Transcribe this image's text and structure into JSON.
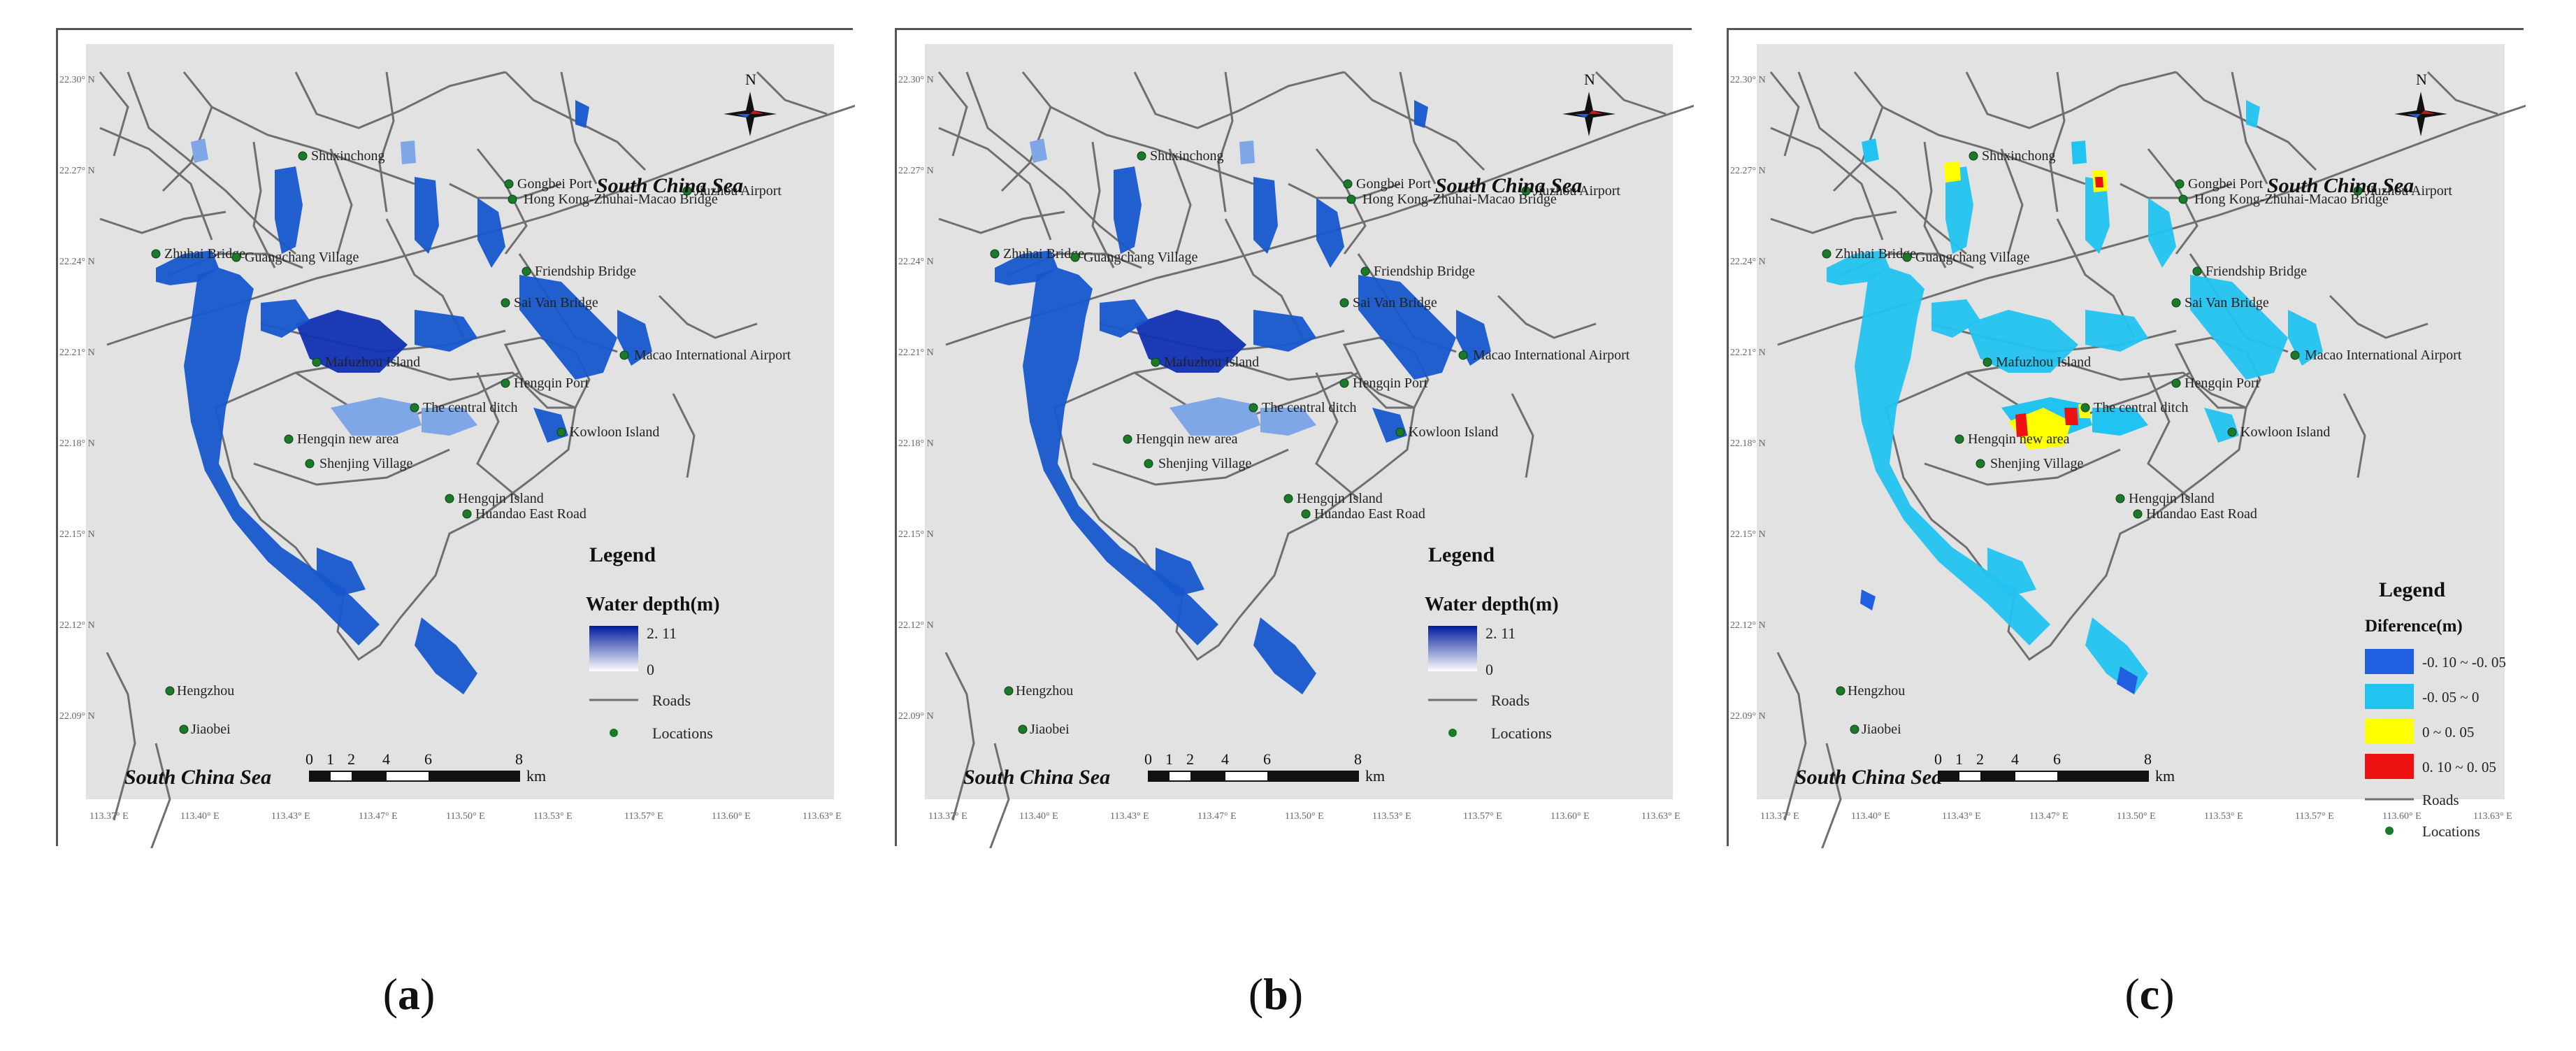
{
  "figure": {
    "compass_letter": "N",
    "legend_title": "Legend",
    "roads_label": "Roads",
    "locations_label": "Locations",
    "scale_numbers": [
      "0",
      "1",
      "2",
      "4",
      "6",
      "8"
    ],
    "scale_unit": "km",
    "panels": [
      {
        "caption_open": "(",
        "caption_letter": "a",
        "caption_close": ")",
        "legend_heading": "Water depth(m)",
        "legend_max": "2. 11",
        "legend_min": "0",
        "sea_top": "South China Sea",
        "sea_bottom": "South China Sea",
        "locations": [
          {
            "name": "Jiuzhou Airport"
          },
          {
            "name": "Shuxinchong"
          },
          {
            "name": "Gongbei Port"
          },
          {
            "name": "Hong Kong-Zhuhai-Macao Bridge"
          },
          {
            "name": "Zhuhai Bridge"
          },
          {
            "name": "Guangchang Village"
          },
          {
            "name": "Friendship Bridge"
          },
          {
            "name": "Sai Van Bridge"
          },
          {
            "name": "Macao International Airport"
          },
          {
            "name": "Mafuzhou Island"
          },
          {
            "name": "Hengqin Port"
          },
          {
            "name": "The central ditch"
          },
          {
            "name": "Kowloon Island"
          },
          {
            "name": "Hengqin new area"
          },
          {
            "name": "Shenjing Village"
          },
          {
            "name": "Hengqin Island"
          },
          {
            "name": "Huandao East Road"
          },
          {
            "name": "Hengzhou"
          },
          {
            "name": "Jiaobei"
          }
        ],
        "lat_ticks": [
          "22.30° N",
          "22.27° N",
          "22.24° N",
          "22.21° N",
          "22.18° N",
          "22.15° N",
          "22.12° N",
          "22.09° N"
        ],
        "lon_ticks": [
          "113.37° E",
          "113.40° E",
          "113.43° E",
          "113.47° E",
          "113.50° E",
          "113.53° E",
          "113.57° E",
          "113.60° E",
          "113.63° E"
        ]
      },
      {
        "caption_open": "(",
        "caption_letter": "b",
        "caption_close": ")",
        "legend_heading": "Water depth(m)",
        "legend_max": "2. 11",
        "legend_min": "0",
        "sea_top": "South China Sea",
        "sea_bottom": "South China Sea",
        "locations": [
          {
            "name": "Jiuzhou Airport"
          },
          {
            "name": "Shuxinchong"
          },
          {
            "name": "Gongbei Port"
          },
          {
            "name": "Hong Kong-Zhuhai-Macao Bridge"
          },
          {
            "name": "Zhuhai Bridge"
          },
          {
            "name": "Guangchang Village"
          },
          {
            "name": "Friendship Bridge"
          },
          {
            "name": "Sai Van Bridge"
          },
          {
            "name": "Macao International Airport"
          },
          {
            "name": "Mafuzhou Island"
          },
          {
            "name": "Hengqin Port"
          },
          {
            "name": "The central ditch"
          },
          {
            "name": "Kowloon Island"
          },
          {
            "name": "Hengqin new area"
          },
          {
            "name": "Shenjing Village"
          },
          {
            "name": "Hengqin Island"
          },
          {
            "name": "Huandao East Road"
          },
          {
            "name": "Hengzhou"
          },
          {
            "name": "Jiaobei"
          }
        ],
        "lat_ticks": [
          "22.30° N",
          "22.27° N",
          "22.24° N",
          "22.21° N",
          "22.18° N",
          "22.15° N",
          "22.12° N",
          "22.09° N"
        ],
        "lon_ticks": [
          "113.37° E",
          "113.40° E",
          "113.43° E",
          "113.47° E",
          "113.50° E",
          "113.53° E",
          "113.57° E",
          "113.60° E",
          "113.63° E"
        ]
      },
      {
        "caption_open": "(",
        "caption_letter": "c",
        "caption_close": ")",
        "legend_heading": "Diference(m)",
        "legend_classes": [
          {
            "label": "-0. 10 ~ -0. 05",
            "color": "#1f5fe0"
          },
          {
            "label": "-0. 05 ~ 0",
            "color": "#21c3f0"
          },
          {
            "label": "0 ~ 0. 05",
            "color": "#ffff00"
          },
          {
            "label": "0. 10 ~ 0. 05",
            "color": "#ee1111"
          }
        ],
        "sea_top": "South China Sea",
        "sea_bottom": "South China Sea",
        "locations": [
          {
            "name": "Jiuzhou Airport"
          },
          {
            "name": "Shuxinchong"
          },
          {
            "name": "Gongbei Port"
          },
          {
            "name": "Hong Kong-Zhuhai-Macao Bridge"
          },
          {
            "name": "Zhuhai Bridge"
          },
          {
            "name": "Guangchang Village"
          },
          {
            "name": "Friendship Bridge"
          },
          {
            "name": "Sai Van Bridge"
          },
          {
            "name": "Macao International Airport"
          },
          {
            "name": "Mafuzhou Island"
          },
          {
            "name": "Hengqin Port"
          },
          {
            "name": "The central ditch"
          },
          {
            "name": "Kowloon Island"
          },
          {
            "name": "Hengqin new area"
          },
          {
            "name": "Shenjing Village"
          },
          {
            "name": "Hengqin Island"
          },
          {
            "name": "Huandao East Road"
          },
          {
            "name": "Hengzhou"
          },
          {
            "name": "Jiaobei"
          }
        ],
        "lat_ticks": [
          "22.30° N",
          "22.27° N",
          "22.24° N",
          "22.21° N",
          "22.18° N",
          "22.15° N",
          "22.12° N",
          "22.09° N"
        ],
        "lon_ticks": [
          "113.37° E",
          "113.40° E",
          "113.43° E",
          "113.47° E",
          "113.50° E",
          "113.53° E",
          "113.57° E",
          "113.60° E",
          "113.63° E"
        ]
      }
    ]
  },
  "colors": {
    "map_background": "#e2e2e2",
    "road": "#6f6f6f",
    "flood_deep": "#1030b0",
    "flood_mid": "#1656cc",
    "flood_light": "#7fa6e6",
    "diff_negative_strong": "#1f5fe0",
    "diff_negative": "#21c3f0",
    "diff_positive": "#ffff00",
    "diff_positive_strong": "#ee1111",
    "location_dot": "#1b7a2a"
  }
}
